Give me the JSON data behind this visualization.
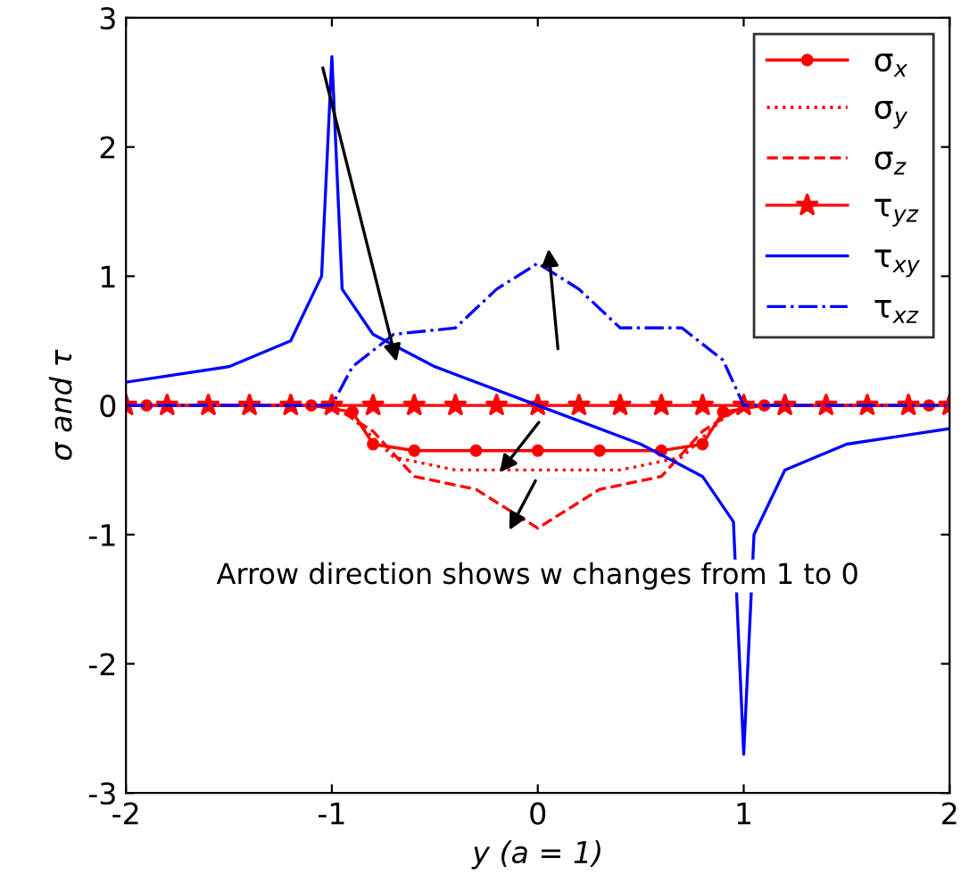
{
  "chart_data": {
    "type": "line",
    "xlabel": "y (a = 1)",
    "ylabel": "σ and τ",
    "xlim": [
      -2,
      2
    ],
    "ylim": [
      -3,
      3
    ],
    "xticks": [
      -2,
      -1,
      0,
      1,
      2
    ],
    "yticks": [
      -3,
      -2,
      -1,
      0,
      1,
      2,
      3
    ],
    "grid": false,
    "legend": "top right",
    "annotations": [
      "Arrow direction shows w changes from 1 to 0"
    ],
    "series": [
      {
        "name": "σ$_{x}$",
        "color": "#ff0000",
        "marker": "circle",
        "line_style": "solid",
        "x": [
          -1.9,
          -1.1,
          -0.9,
          -0.8,
          -0.6,
          -0.3,
          0,
          0.3,
          0.6,
          0.8,
          0.9,
          1.1,
          1.9
        ],
        "values": [
          0,
          0,
          -0.05,
          -0.3,
          -0.35,
          -0.35,
          -0.35,
          -0.35,
          -0.35,
          -0.3,
          -0.05,
          0,
          0
        ]
      },
      {
        "name": "σ$_{y}$",
        "color": "#ff0000",
        "marker": "none",
        "line_style": "dotted",
        "x": [
          -2,
          -1,
          -0.9,
          -0.7,
          -0.4,
          0,
          0.4,
          0.7,
          0.9,
          1,
          2
        ],
        "values": [
          0,
          0,
          -0.1,
          -0.4,
          -0.5,
          -0.5,
          -0.5,
          -0.4,
          -0.1,
          0,
          0
        ]
      },
      {
        "name": "σ$_{z}$",
        "color": "#ff0000",
        "marker": "none",
        "line_style": "dashed",
        "x": [
          -2,
          -1,
          -0.8,
          -0.6,
          -0.3,
          0,
          0.3,
          0.6,
          0.8,
          1,
          2
        ],
        "values": [
          0,
          0,
          -0.2,
          -0.55,
          -0.65,
          -0.95,
          -0.65,
          -0.55,
          -0.2,
          0,
          0
        ]
      },
      {
        "name": "τ$_{yz}$",
        "color": "#ff0000",
        "marker": "star",
        "line_style": "solid",
        "x": [
          -2,
          -1.8,
          -1.6,
          -1.4,
          -1.2,
          -1,
          -0.8,
          -0.6,
          -0.4,
          -0.2,
          0,
          0.2,
          0.4,
          0.6,
          0.8,
          1,
          1.2,
          1.4,
          1.6,
          1.8,
          2
        ],
        "values": [
          0,
          0,
          0,
          0,
          0,
          0,
          0,
          0,
          0,
          0,
          0,
          0,
          0,
          0,
          0,
          0,
          0,
          0,
          0,
          0,
          0
        ]
      },
      {
        "name": "τ$_{xy}$",
        "color": "#0000ff",
        "marker": "none",
        "line_style": "solid",
        "x": [
          -2,
          -1.5,
          -1.2,
          -1.05,
          -1,
          -0.95,
          -0.8,
          -0.5,
          0,
          0.5,
          0.8,
          0.95,
          1,
          1.05,
          1.2,
          1.5,
          2
        ],
        "values": [
          0.18,
          0.3,
          0.5,
          1.0,
          2.7,
          0.9,
          0.55,
          0.3,
          0,
          -0.3,
          -0.55,
          -0.9,
          -2.7,
          -1.0,
          -0.5,
          -0.3,
          -0.18
        ]
      },
      {
        "name": "τ$_{xz}$",
        "color": "#0000ff",
        "marker": "none",
        "line_style": "dashdot",
        "x": [
          -2,
          -1,
          -0.9,
          -0.7,
          -0.4,
          -0.2,
          0,
          0.2,
          0.4,
          0.7,
          0.9,
          1,
          2
        ],
        "values": [
          0,
          0,
          0.3,
          0.55,
          0.6,
          0.9,
          1.1,
          0.9,
          0.6,
          0.6,
          0.35,
          0,
          0
        ]
      }
    ]
  }
}
